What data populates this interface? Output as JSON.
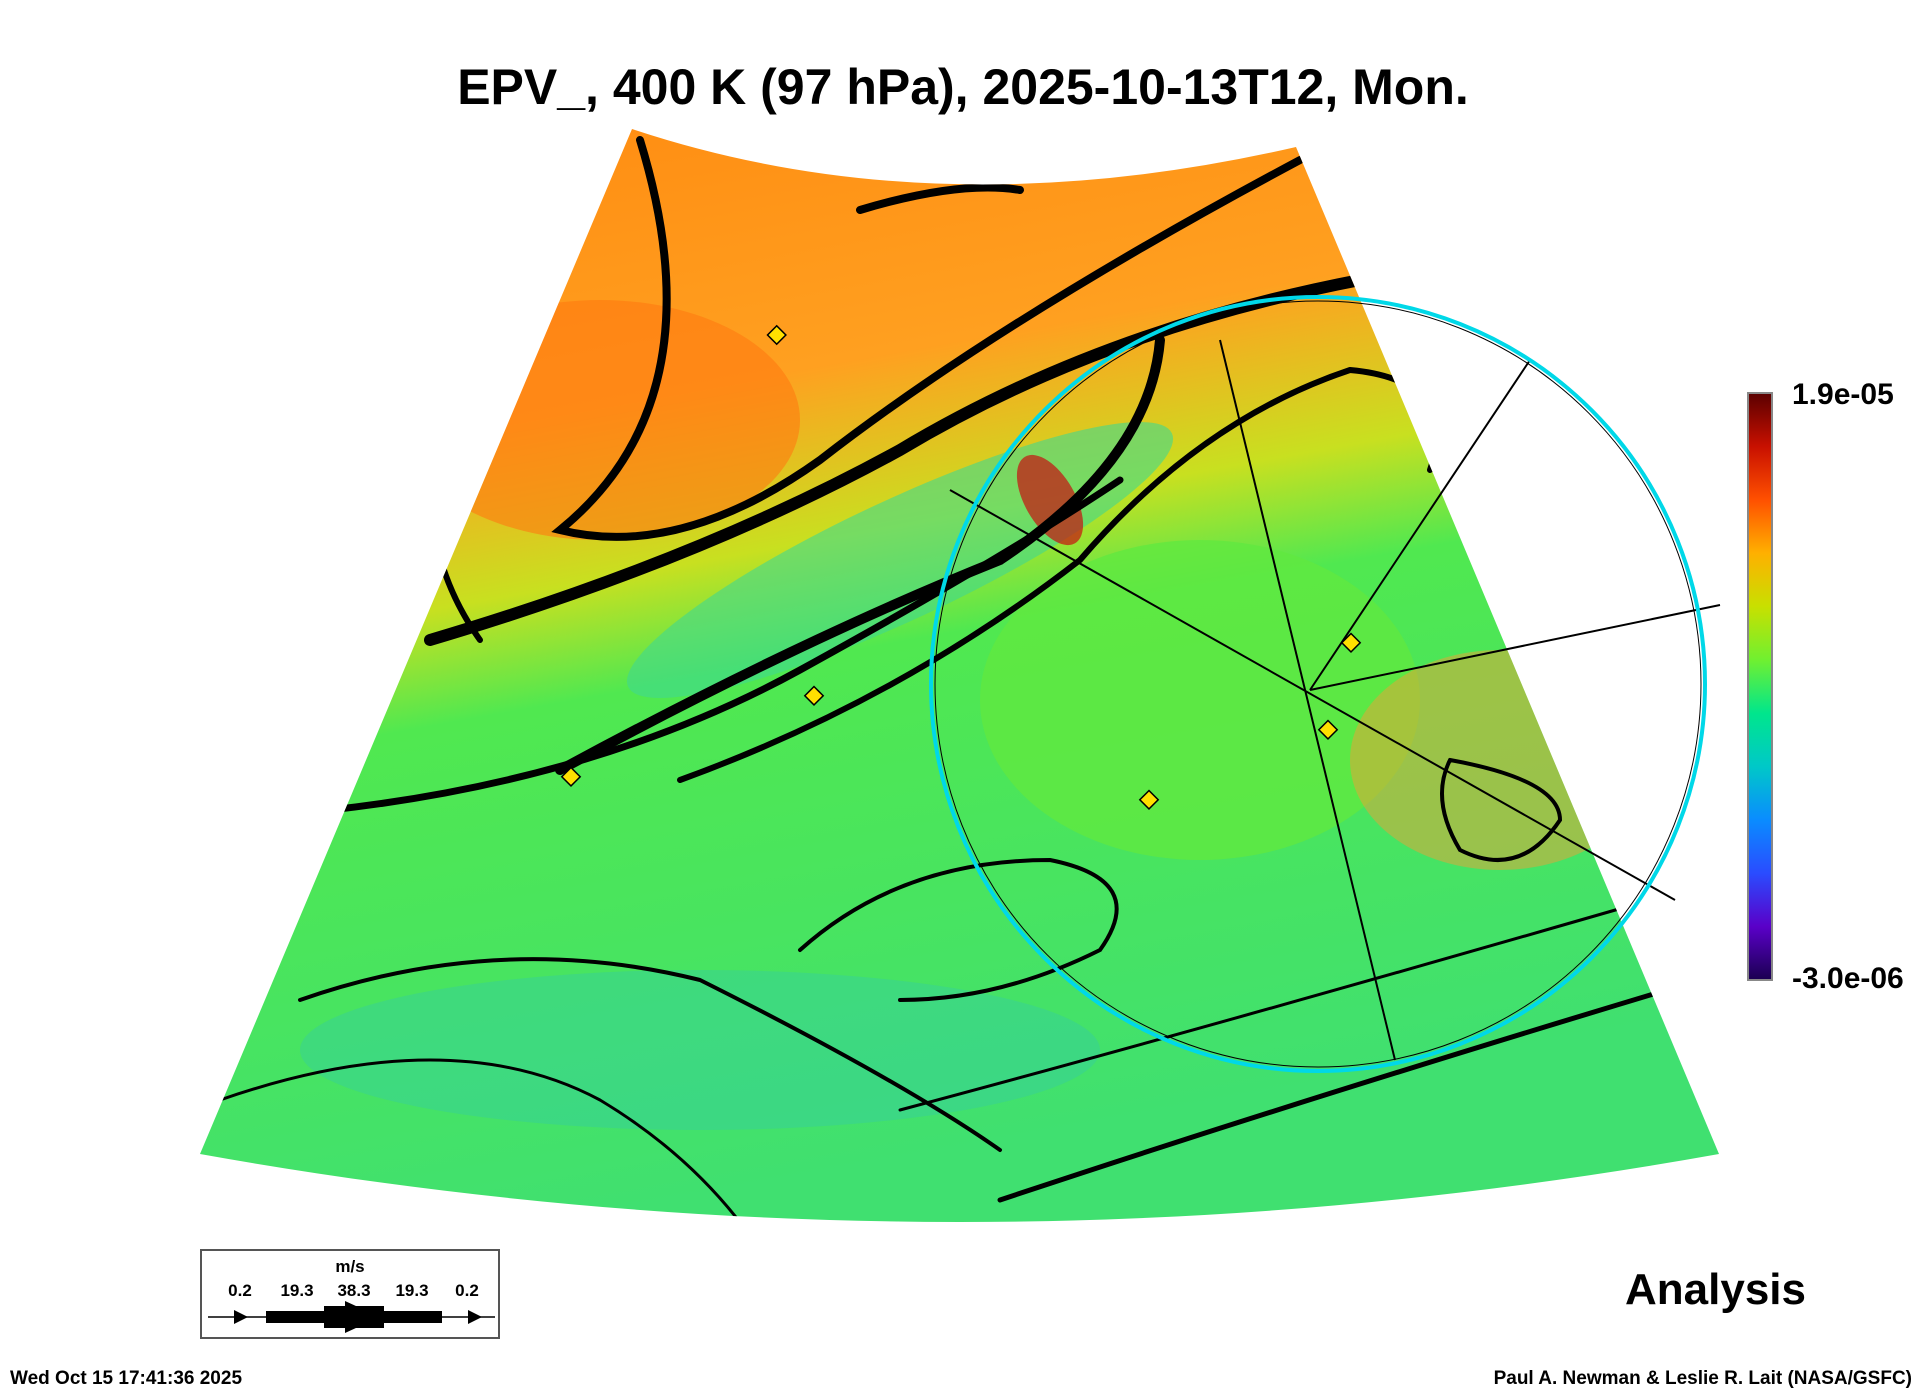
{
  "chart_data": {
    "type": "heatmap",
    "title": "EPV_, 400 K (97 hPa), 2025-10-13T12, Mon.",
    "variable": "EPV_",
    "level": "400 K (97 hPa)",
    "colorbar": {
      "max_label": "1.9e-05",
      "min_label": "-3.0e-06",
      "range": [
        -3e-06,
        1.9e-05
      ],
      "colors": [
        "#1a0050",
        "#5a00c8",
        "#2a4cff",
        "#0a8cff",
        "#00c8c8",
        "#00e68c",
        "#70f030",
        "#c8e000",
        "#ffb000",
        "#ff5000",
        "#c81000",
        "#5a0000"
      ]
    },
    "overlay": "wind streamlines",
    "wind_legend": {
      "unit": "m/s",
      "values": [
        "0.2",
        "19.3",
        "38.3",
        "19.3",
        "0.2"
      ]
    },
    "label": "Analysis"
  },
  "footer": {
    "timestamp": "Wed Oct 15 17:41:36 2025",
    "credit": "Paul A. Newman & Leslie R. Lait (NASA/GSFC)"
  }
}
